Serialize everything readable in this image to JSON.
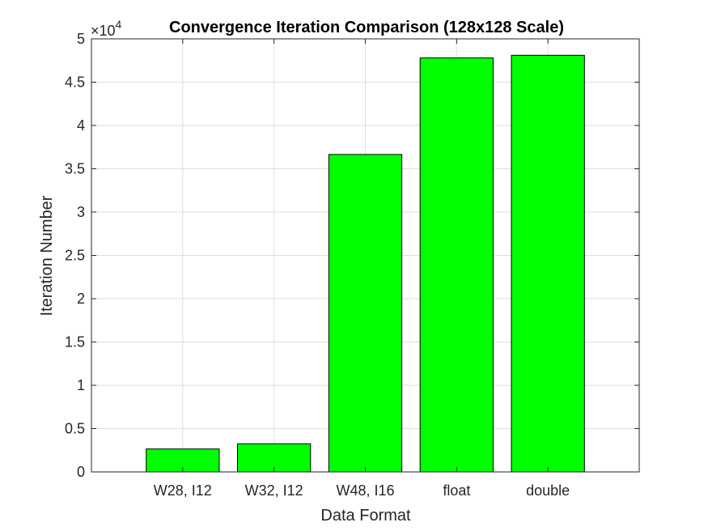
{
  "chart_data": {
    "type": "bar",
    "title": "Convergence Iteration Comparison (128x128 Scale)",
    "xlabel": "Data Format",
    "ylabel": "Iteration Number",
    "categories": [
      "W28, I12",
      "W32, I12",
      "W48, I16",
      "float",
      "double"
    ],
    "values": [
      2650,
      3250,
      36650,
      47800,
      48100
    ],
    "ylim": [
      0,
      50000
    ],
    "xlim": [
      0,
      6
    ],
    "y_tick_values": [
      0,
      5000,
      10000,
      15000,
      20000,
      25000,
      30000,
      35000,
      40000,
      45000,
      50000
    ],
    "y_tick_labels": [
      "0",
      "0.5",
      "1",
      "1.5",
      "2",
      "2.5",
      "3",
      "3.5",
      "4",
      "4.5",
      "5"
    ],
    "y_exponent_base": "×10",
    "y_exponent_power": "4",
    "grid": true,
    "bar_color": "#00ff00",
    "bar_edge_color": "#000000"
  }
}
